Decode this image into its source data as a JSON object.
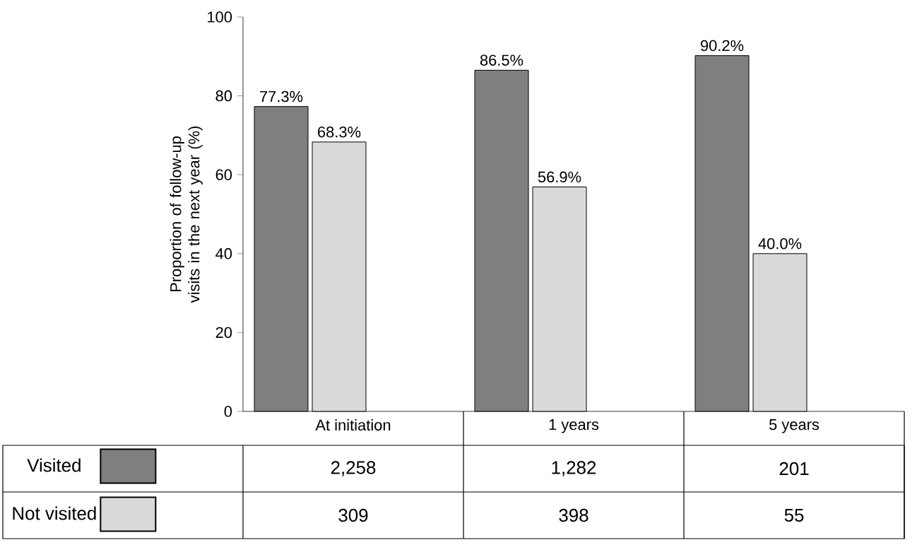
{
  "chart_data": {
    "type": "bar",
    "ylabel": "Proportion of follow-up visits in the next year (%)",
    "categories": [
      "At initiation",
      "1 years",
      "5 years"
    ],
    "series": [
      {
        "name": "Visited",
        "color": "#7f7f7f",
        "values": [
          77.3,
          86.5,
          90.2
        ],
        "value_labels": [
          "77.3%",
          "86.5%",
          "90.2%"
        ]
      },
      {
        "name": "Not visited",
        "color": "#d9d9d9",
        "values": [
          68.3,
          56.9,
          40.0
        ],
        "value_labels": [
          "68.3%",
          "56.9%",
          "40.0%"
        ]
      }
    ],
    "legend": "bottom left",
    "ylim": [
      0,
      100
    ],
    "yticks": [
      0,
      20,
      40,
      60,
      80,
      100
    ],
    "grid": false,
    "annotations": [
      "2,258",
      "1,282",
      "201",
      "309",
      "398",
      "55"
    ]
  }
}
